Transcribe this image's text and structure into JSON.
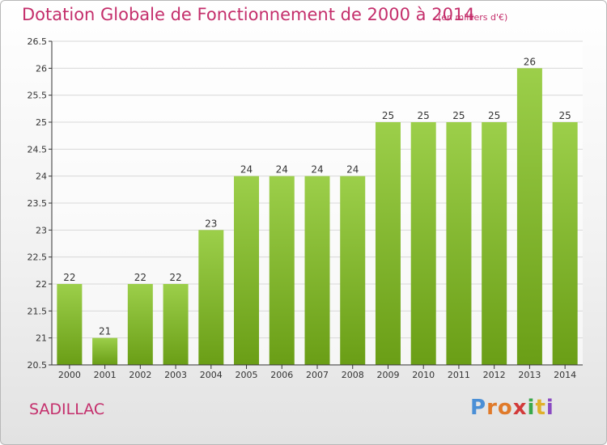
{
  "header": {
    "title": "Dotation Globale de Fonctionnement de 2000 à 2014",
    "unit": "(en milliers d'€)"
  },
  "footer": {
    "place": "SADILLAC",
    "logo": "Proxiti"
  },
  "colors": {
    "title": "#c42e6b",
    "bar_top": "#9ccf4a",
    "bar_bottom": "#6a9e16",
    "grid": "#d8d8d8",
    "axis": "#333333"
  },
  "chart_data": {
    "type": "bar",
    "title": "Dotation Globale de Fonctionnement de 2000 à 2014",
    "subtitle": "(en milliers d'€)",
    "xlabel": "",
    "ylabel": "",
    "categories": [
      "2000",
      "2001",
      "2002",
      "2003",
      "2004",
      "2005",
      "2006",
      "2007",
      "2008",
      "2009",
      "2010",
      "2011",
      "2012",
      "2013",
      "2014"
    ],
    "values": [
      22,
      21,
      22,
      22,
      23,
      24,
      24,
      24,
      24,
      25,
      25,
      25,
      25,
      26,
      25
    ],
    "data_labels": [
      "22",
      "21",
      "22",
      "22",
      "23",
      "24",
      "24",
      "24",
      "24",
      "25",
      "25",
      "25",
      "25",
      "26",
      "25"
    ],
    "ylim": [
      20.5,
      26.5
    ],
    "yticks": [
      20.5,
      21,
      21.5,
      22,
      22.5,
      23,
      23.5,
      24,
      24.5,
      25,
      25.5,
      26,
      26.5
    ],
    "ytick_labels": [
      "20.5",
      "21",
      "21.5",
      "22",
      "22.5",
      "23",
      "23.5",
      "24",
      "24.5",
      "25",
      "25.5",
      "26",
      "26.5"
    ],
    "grid": true,
    "legend": "none"
  }
}
